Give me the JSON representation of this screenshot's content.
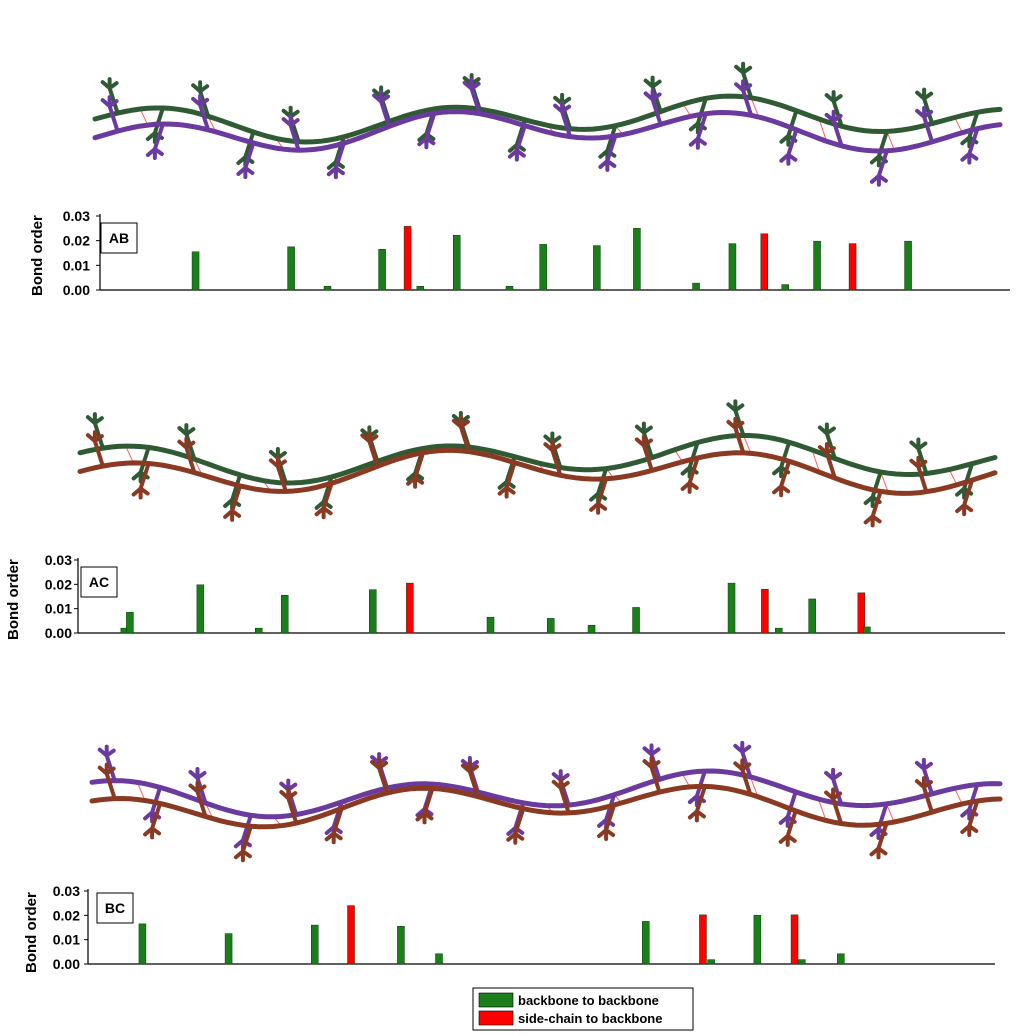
{
  "colors": {
    "backbone": "#1a7f1a",
    "sidechain": "#ff0000",
    "strand_a": "#2f5a34",
    "strand_a_light": "#6f9d74",
    "strand_b": "#6b3a9e",
    "strand_c": "#8a3a22",
    "hbond": "#ff6060"
  },
  "legend": {
    "backbone_label": "backbone to backbone",
    "sidechain_label": "side-chain to backbone"
  },
  "chart_data": [
    {
      "type": "bar",
      "pair": "AB",
      "strands": [
        "a",
        "b"
      ],
      "ylabel": "Bond order",
      "ylim": [
        0,
        0.03
      ],
      "yticks": [
        "0.03",
        "0.02",
        "0.01",
        "0.00"
      ],
      "bars": [
        {
          "x": 0.105,
          "value": 0.0155,
          "kind": "backbone"
        },
        {
          "x": 0.21,
          "value": 0.0175,
          "kind": "backbone"
        },
        {
          "x": 0.25,
          "value": 0.0015,
          "kind": "backbone"
        },
        {
          "x": 0.31,
          "value": 0.0165,
          "kind": "backbone"
        },
        {
          "x": 0.338,
          "value": 0.0258,
          "kind": "sidechain"
        },
        {
          "x": 0.352,
          "value": 0.0015,
          "kind": "backbone"
        },
        {
          "x": 0.392,
          "value": 0.0222,
          "kind": "backbone"
        },
        {
          "x": 0.45,
          "value": 0.0015,
          "kind": "backbone"
        },
        {
          "x": 0.487,
          "value": 0.0185,
          "kind": "backbone"
        },
        {
          "x": 0.546,
          "value": 0.018,
          "kind": "backbone"
        },
        {
          "x": 0.59,
          "value": 0.025,
          "kind": "backbone"
        },
        {
          "x": 0.655,
          "value": 0.0028,
          "kind": "backbone"
        },
        {
          "x": 0.695,
          "value": 0.0188,
          "kind": "backbone"
        },
        {
          "x": 0.73,
          "value": 0.0228,
          "kind": "sidechain"
        },
        {
          "x": 0.753,
          "value": 0.0022,
          "kind": "backbone"
        },
        {
          "x": 0.788,
          "value": 0.0198,
          "kind": "backbone"
        },
        {
          "x": 0.827,
          "value": 0.0188,
          "kind": "sidechain"
        },
        {
          "x": 0.888,
          "value": 0.0198,
          "kind": "backbone"
        }
      ]
    },
    {
      "type": "bar",
      "pair": "AC",
      "strands": [
        "a",
        "c"
      ],
      "ylabel": "Bond order",
      "ylim": [
        0,
        0.03
      ],
      "yticks": [
        "0.03",
        "0.02",
        "0.01",
        "0.00"
      ],
      "bars": [
        {
          "x": 0.05,
          "value": 0.002,
          "kind": "backbone"
        },
        {
          "x": 0.056,
          "value": 0.0085,
          "kind": "backbone"
        },
        {
          "x": 0.132,
          "value": 0.0198,
          "kind": "backbone"
        },
        {
          "x": 0.195,
          "value": 0.002,
          "kind": "backbone"
        },
        {
          "x": 0.223,
          "value": 0.0155,
          "kind": "backbone"
        },
        {
          "x": 0.318,
          "value": 0.0178,
          "kind": "backbone"
        },
        {
          "x": 0.358,
          "value": 0.0205,
          "kind": "sidechain"
        },
        {
          "x": 0.445,
          "value": 0.0065,
          "kind": "backbone"
        },
        {
          "x": 0.51,
          "value": 0.006,
          "kind": "backbone"
        },
        {
          "x": 0.554,
          "value": 0.0032,
          "kind": "backbone"
        },
        {
          "x": 0.602,
          "value": 0.0105,
          "kind": "backbone"
        },
        {
          "x": 0.705,
          "value": 0.0205,
          "kind": "backbone"
        },
        {
          "x": 0.741,
          "value": 0.018,
          "kind": "sidechain"
        },
        {
          "x": 0.756,
          "value": 0.002,
          "kind": "backbone"
        },
        {
          "x": 0.792,
          "value": 0.014,
          "kind": "backbone"
        },
        {
          "x": 0.845,
          "value": 0.0165,
          "kind": "sidechain"
        },
        {
          "x": 0.851,
          "value": 0.0025,
          "kind": "backbone"
        }
      ]
    },
    {
      "type": "bar",
      "pair": "BC",
      "strands": [
        "b",
        "c"
      ],
      "ylabel": "Bond order",
      "ylim": [
        0,
        0.03
      ],
      "yticks": [
        "0.03",
        "0.02",
        "0.01",
        "0.00"
      ],
      "bars": [
        {
          "x": 0.06,
          "value": 0.0165,
          "kind": "backbone"
        },
        {
          "x": 0.155,
          "value": 0.0125,
          "kind": "backbone"
        },
        {
          "x": 0.25,
          "value": 0.016,
          "kind": "backbone"
        },
        {
          "x": 0.29,
          "value": 0.024,
          "kind": "sidechain"
        },
        {
          "x": 0.345,
          "value": 0.0155,
          "kind": "backbone"
        },
        {
          "x": 0.387,
          "value": 0.0042,
          "kind": "backbone"
        },
        {
          "x": 0.615,
          "value": 0.0175,
          "kind": "backbone"
        },
        {
          "x": 0.678,
          "value": 0.0202,
          "kind": "sidechain"
        },
        {
          "x": 0.687,
          "value": 0.0018,
          "kind": "backbone"
        },
        {
          "x": 0.738,
          "value": 0.02,
          "kind": "backbone"
        },
        {
          "x": 0.779,
          "value": 0.0202,
          "kind": "sidechain"
        },
        {
          "x": 0.787,
          "value": 0.0018,
          "kind": "backbone"
        },
        {
          "x": 0.83,
          "value": 0.0042,
          "kind": "backbone"
        }
      ]
    }
  ]
}
